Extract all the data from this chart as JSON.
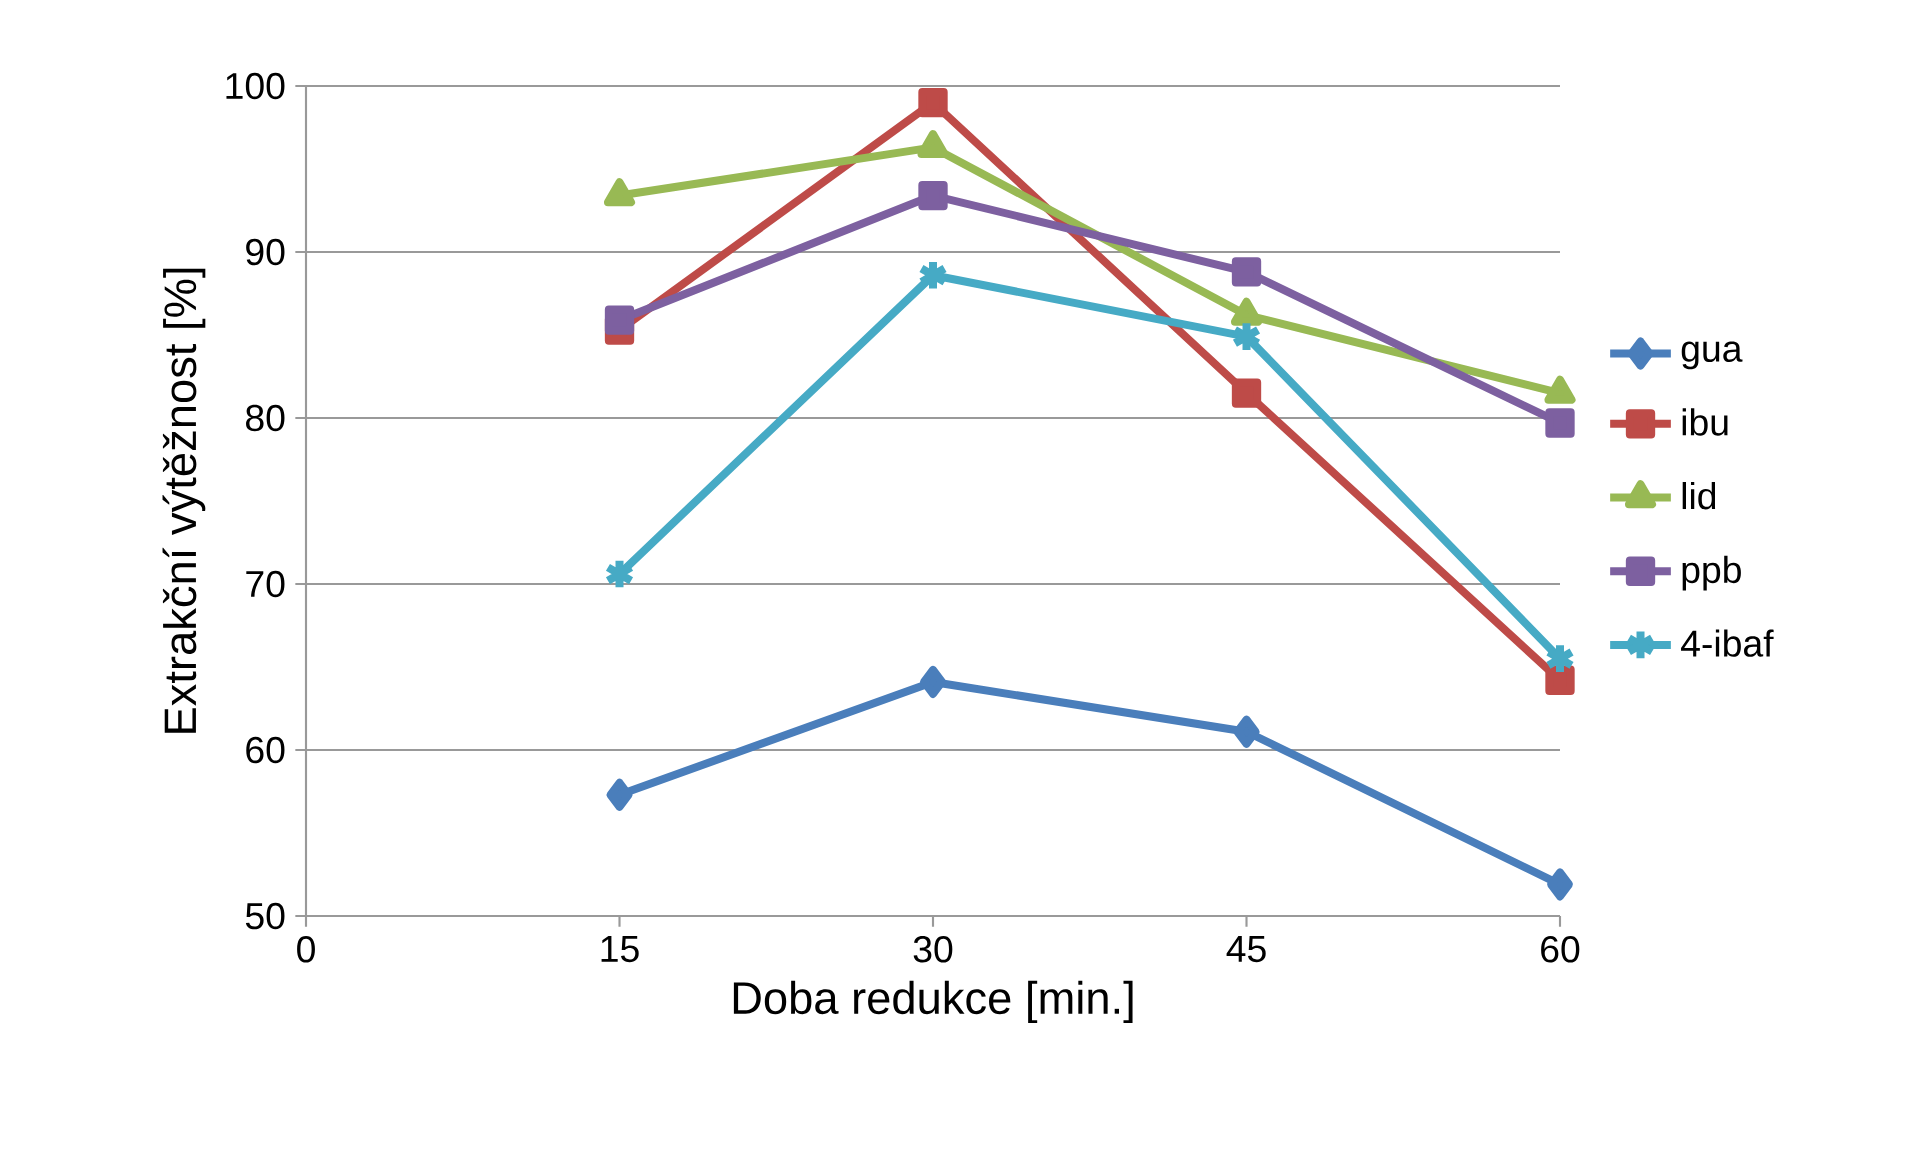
{
  "chart_data": {
    "type": "line",
    "xlabel": "Doba redukce [min.]",
    "ylabel": "Extrakční výtěžnost [%]",
    "x": [
      15,
      30,
      45,
      60
    ],
    "series": [
      {
        "name": "gua",
        "color": "#4a7ebb",
        "marker": "diamond",
        "values": [
          57.3,
          64.1,
          61.1,
          51.9
        ]
      },
      {
        "name": "ibu",
        "color": "#be4b48",
        "marker": "square",
        "values": [
          85.3,
          99.0,
          81.5,
          64.2
        ]
      },
      {
        "name": "lid",
        "color": "#98b954",
        "marker": "triangle",
        "values": [
          93.4,
          96.3,
          86.2,
          81.5
        ]
      },
      {
        "name": "ppb",
        "color": "#7d60a0",
        "marker": "square",
        "values": [
          85.9,
          93.4,
          88.8,
          79.7
        ]
      },
      {
        "name": "4-ibaf",
        "color": "#46aac5",
        "marker": "cross",
        "values": [
          70.6,
          88.6,
          84.9,
          65.5
        ]
      }
    ],
    "xlim": [
      0,
      60
    ],
    "xticks": [
      0,
      15,
      30,
      45,
      60
    ],
    "ylim": [
      50,
      100
    ],
    "yticks": [
      50,
      60,
      70,
      80,
      90,
      100
    ],
    "grid": "y",
    "legend": "right",
    "line_style": "solid"
  }
}
